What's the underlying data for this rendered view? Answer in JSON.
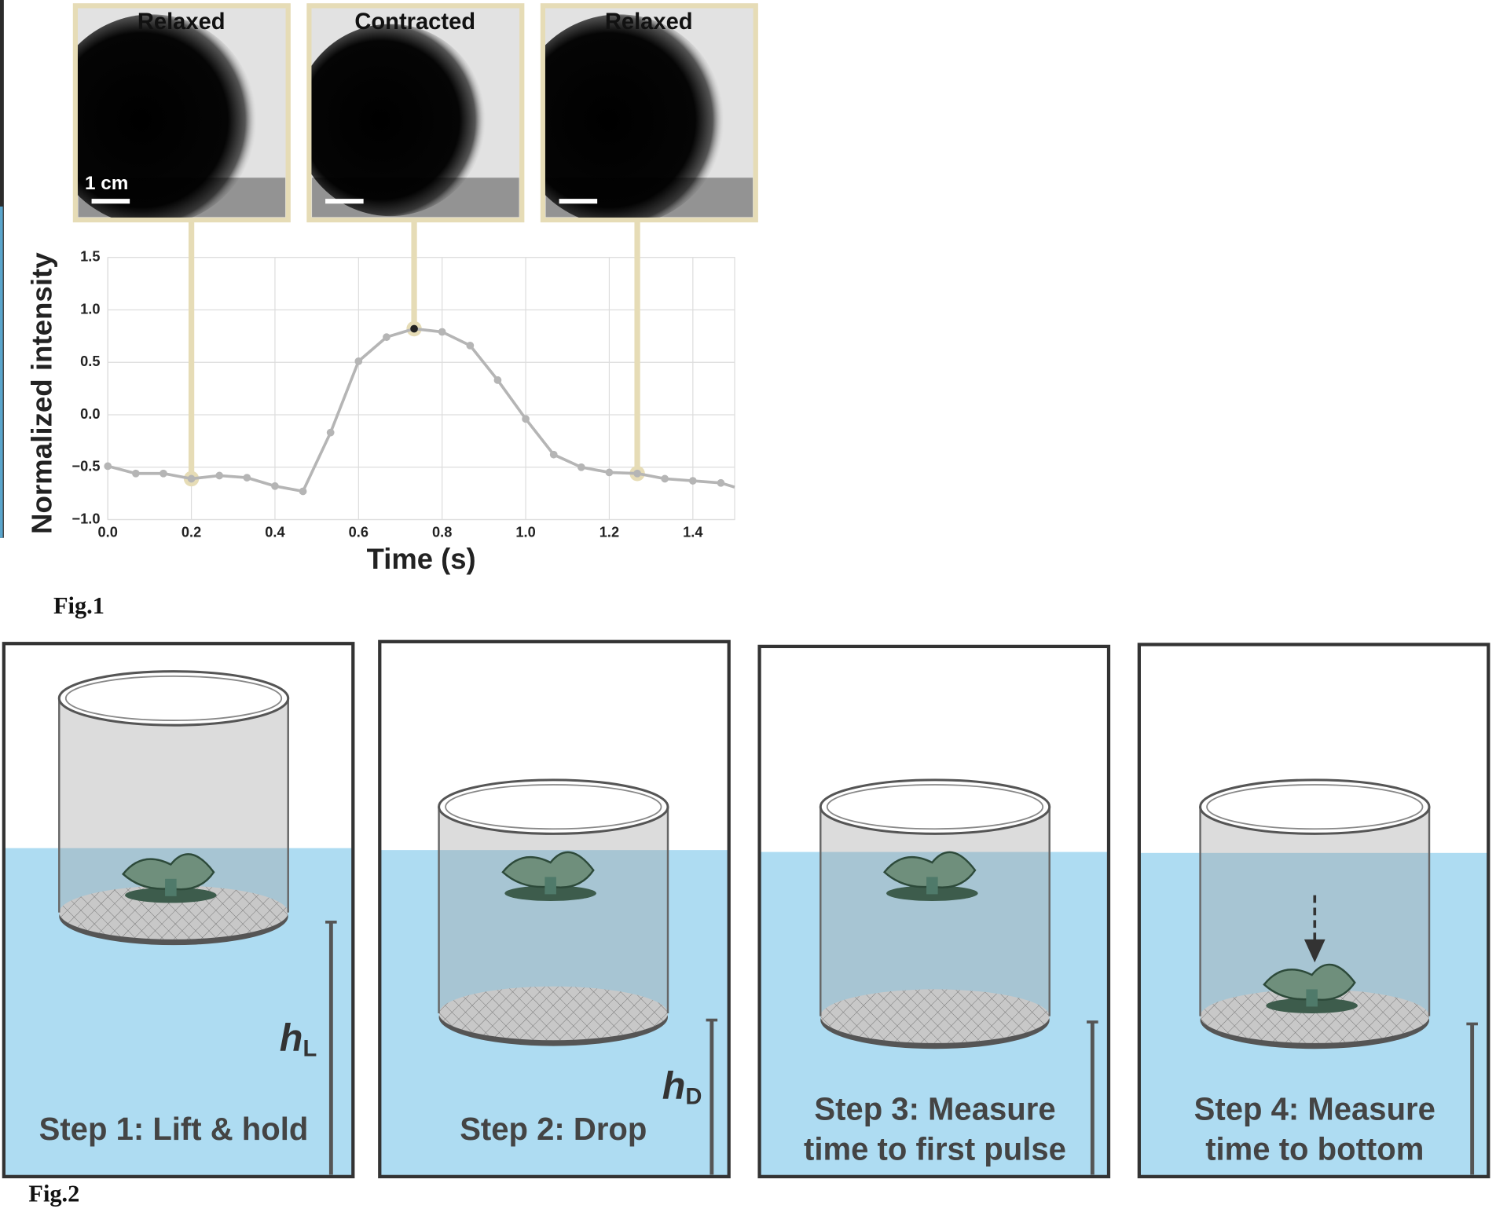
{
  "chart_data": {
    "type": "line",
    "xlabel": "Time (s)",
    "ylabel": "Normalized intensity",
    "x": [
      0,
      0.067,
      0.133,
      0.2,
      0.267,
      0.333,
      0.4,
      0.467,
      0.533,
      0.6,
      0.667,
      0.733,
      0.8,
      0.867,
      0.933,
      1.0,
      1.067,
      1.133,
      1.2,
      1.267,
      1.333,
      1.4,
      1.467,
      1.5
    ],
    "series": [
      {
        "color": "#b5b5b5",
        "values": [
          -0.49,
          -0.56,
          -0.56,
          -0.61,
          -0.58,
          -0.6,
          -0.68,
          -0.73,
          -0.17,
          0.51,
          0.74,
          0.82,
          0.79,
          0.66,
          0.33,
          -0.04,
          -0.38,
          -0.5,
          -0.55,
          -0.56,
          -0.61,
          -0.63,
          -0.65,
          -0.69
        ]
      }
    ],
    "xlim": [
      0,
      1.5
    ],
    "ylim": [
      -1.0,
      1.5
    ],
    "xticks": [
      {
        "value": 0,
        "label": "0.0"
      },
      {
        "value": 0.2,
        "label": "0.2"
      },
      {
        "value": 0.4,
        "label": "0.4"
      },
      {
        "value": 0.6,
        "label": "0.6"
      },
      {
        "value": 0.8,
        "label": "0.8"
      },
      {
        "value": 1.0,
        "label": "1.0"
      },
      {
        "value": 1.2,
        "label": "1.2"
      },
      {
        "value": 1.4,
        "label": "1.4"
      }
    ],
    "yticks": [
      {
        "value": -1.0,
        "label": "−1.0"
      },
      {
        "value": -0.5,
        "label": "−0.5"
      },
      {
        "value": 0,
        "label": "0.0"
      },
      {
        "value": 0.5,
        "label": "0.5"
      },
      {
        "value": 1.0,
        "label": "1.0"
      },
      {
        "value": 1.5,
        "label": "1.5"
      }
    ],
    "grid": true,
    "panels": [
      "Relaxed",
      "Contracted",
      "Relaxed"
    ],
    "scale_bar": "1 cm"
  },
  "fig1": {
    "label": "Fig.1"
  },
  "fig2": {
    "label": "Fig.2",
    "steps": [
      [
        "Step 1: Lift & hold"
      ],
      [
        "Step 2: Drop"
      ],
      [
        "Step 3: Measure",
        "time to first pulse"
      ],
      [
        "Step 4: Measure",
        "time to bottom"
      ]
    ],
    "h_L": {
      "symbol": "h",
      "subscript": "L"
    },
    "h_D": {
      "symbol": "h",
      "subscript": "D"
    }
  }
}
